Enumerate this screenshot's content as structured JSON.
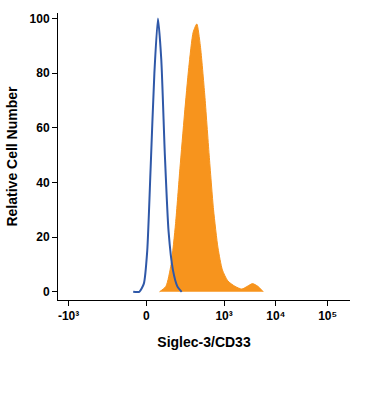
{
  "chart_data": {
    "type": "line",
    "x_label": "Siglec-3/CD33",
    "y_label": "Relative Cell Number",
    "xlim": [
      -1600,
      270000
    ],
    "xticks": [
      {
        "value": -1000,
        "label": "-10³"
      },
      0,
      {
        "value": 1000,
        "label": "10³"
      },
      {
        "value": 10000,
        "label": "10⁴"
      },
      {
        "value": 100000,
        "label": "10⁵"
      }
    ],
    "ylim": [
      -3,
      102
    ],
    "yticks": [
      0,
      20,
      40,
      60,
      80,
      100
    ],
    "grid": false,
    "series": [
      {
        "type": "line",
        "color": "#2f58a8",
        "x": [
          -39,
          -20,
          -7,
          2.5,
          12,
          23,
          34,
          45,
          58,
          73,
          93,
          117,
          145
        ],
        "values": [
          0,
          0,
          3,
          15,
          45,
          80,
          100,
          85,
          50,
          22,
          8,
          2,
          0
        ]
      },
      {
        "type": "area",
        "color": "#f7941d",
        "x": [
          39,
          62,
          84,
          107,
          133,
          166,
          203,
          249,
          294,
          345,
          421,
          513,
          624,
          762,
          926,
          1178,
          1619,
          2205,
          2804,
          3534,
          4492,
          5708
        ],
        "values": [
          0,
          2,
          10,
          25,
          45,
          65,
          82,
          95,
          98,
          90,
          72,
          50,
          30,
          16,
          8,
          4,
          2,
          1,
          2,
          3,
          2,
          0
        ]
      }
    ]
  }
}
